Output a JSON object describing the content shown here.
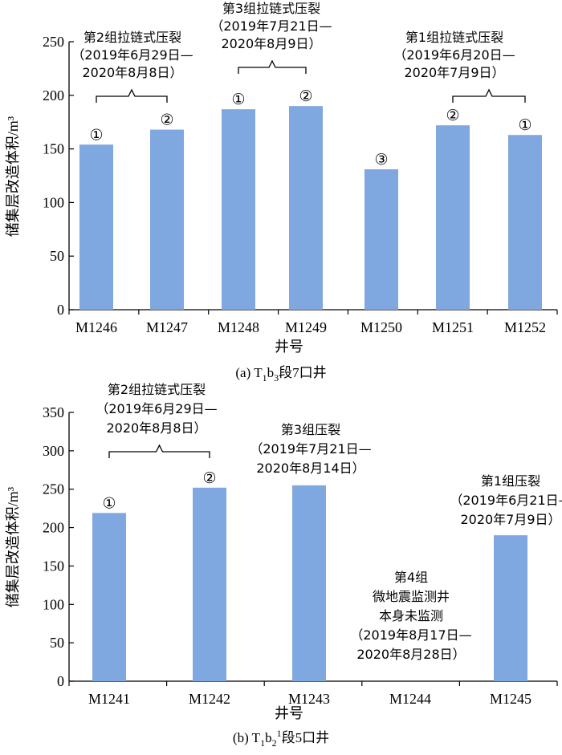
{
  "chart_data": [
    {
      "type": "bar",
      "caption": "(a) T₁b₃段7口井",
      "caption_parts": [
        "(a) T",
        "1",
        "b",
        "3",
        "段7口井"
      ],
      "xlabel": "井号",
      "ylabel": "储集层改造体积/m³",
      "ylim": [
        0,
        250
      ],
      "yticks": [
        0,
        50,
        100,
        150,
        200,
        250
      ],
      "categories": [
        "M1246",
        "M1247",
        "M1248",
        "M1249",
        "M1250",
        "M1251",
        "M1252"
      ],
      "values": [
        154,
        168,
        187,
        190,
        131,
        172,
        163
      ],
      "bar_markers": [
        "①",
        "②",
        "①",
        "②",
        "③",
        "②",
        "①"
      ],
      "groups": [
        {
          "bars": [
            0,
            1
          ],
          "lines": [
            "第2组拉链式压裂",
            "（2019年6月29日—",
            "2020年8月8日）"
          ]
        },
        {
          "bars": [
            2,
            3
          ],
          "lines": [
            "第3组拉链式压裂",
            "（2019年7月21日—",
            "2020年8月9日）"
          ]
        },
        {
          "bars": [
            5,
            6
          ],
          "lines": [
            "第1组拉链式压裂",
            "（2019年6月20日—",
            "2020年7月9日）"
          ]
        }
      ],
      "color": "#7fa7e0"
    },
    {
      "type": "bar",
      "caption": "(b) T₁b₂¹段5口井",
      "caption_parts": [
        "(b) T",
        "1",
        "b",
        "2",
        "1",
        "段5口井"
      ],
      "xlabel": "井号",
      "ylabel": "储集层改造体积/m³",
      "ylim": [
        0,
        350
      ],
      "yticks": [
        0,
        50,
        100,
        150,
        200,
        250,
        300,
        350
      ],
      "categories": [
        "M1241",
        "M1242",
        "M1243",
        "M1244",
        "M1245"
      ],
      "values": [
        219,
        252,
        255,
        null,
        190
      ],
      "bar_markers": [
        "①",
        "②",
        "",
        "",
        ""
      ],
      "groups": [
        {
          "bars": [
            0,
            1
          ],
          "lines": [
            "第2组拉链式压裂",
            "（2019年6月29日—",
            "2020年8月8日）"
          ]
        },
        {
          "bars": [
            2
          ],
          "lines": [
            "第3组压裂",
            "（2019年7月21日—",
            "2020年8月14日）"
          ]
        },
        {
          "bars": [
            3
          ],
          "lines": [
            "第4组",
            "微地震监测井",
            "本身未监测",
            "（2019年8月17日—",
            "2020年8月28日）"
          ]
        },
        {
          "bars": [
            4
          ],
          "lines": [
            "第1组压裂",
            "（2019年6月21日—",
            "2020年7月9日）"
          ]
        }
      ],
      "color": "#7fa7e0"
    }
  ]
}
